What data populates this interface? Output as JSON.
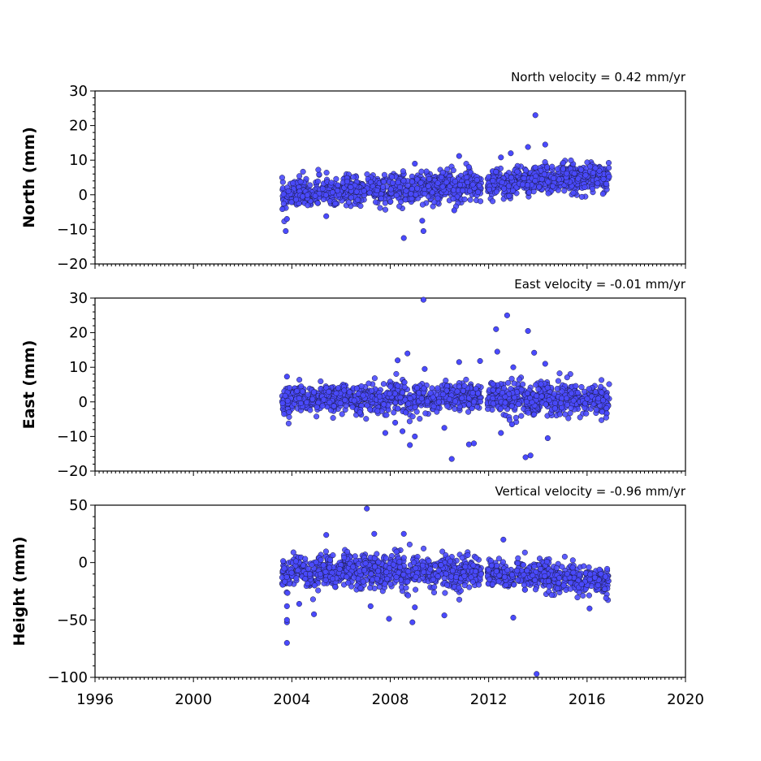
{
  "chart_data": {
    "type": "scatter",
    "marker_color": "#4a4aff",
    "marker_edge_color": "#1a1a40",
    "x_axis": {
      "range": [
        1996,
        2020
      ],
      "ticks": [
        1996,
        2000,
        2004,
        2008,
        2012,
        2016,
        2020
      ],
      "tick_labels": [
        "1996",
        "2000",
        "2004",
        "2008",
        "2012",
        "2016",
        "2020"
      ]
    },
    "panels": [
      {
        "name": "north",
        "ylabel": "North (mm)",
        "annotation": "North velocity = 0.42 mm/yr",
        "ylim": [
          -20,
          30
        ],
        "yticks": [
          -20,
          -10,
          0,
          10,
          20,
          30
        ],
        "ytick_labels": [
          "−20",
          "−10",
          "0",
          "10",
          "20",
          "30"
        ],
        "series": {
          "segments": [
            {
              "start": 2003.6,
              "end": 2011.7,
              "y_at_start": 0.0,
              "y_at_end": 3.0,
              "scatter": 2.0
            },
            {
              "start": 2011.95,
              "end": 2016.9,
              "y_at_start": 3.0,
              "y_at_end": 5.5,
              "scatter": 2.0
            }
          ],
          "outliers": [
            [
              2003.75,
              -10.5
            ],
            [
              2003.8,
              -7.0
            ],
            [
              2008.55,
              -12.5
            ],
            [
              2009.35,
              -10.5
            ],
            [
              2009.3,
              -7.5
            ],
            [
              2013.9,
              23.0
            ],
            [
              2014.3,
              14.5
            ],
            [
              2013.6,
              13.8
            ],
            [
              2010.8,
              11.2
            ],
            [
              2012.9,
              12.0
            ],
            [
              2012.5,
              10.8
            ],
            [
              2005.4,
              -6.2
            ],
            [
              2011.2,
              8.0
            ],
            [
              2009.0,
              9.0
            ],
            [
              2010.6,
              -4.5
            ]
          ]
        }
      },
      {
        "name": "east",
        "ylabel": "East (mm)",
        "annotation": "East velocity = -0.01 mm/yr",
        "ylim": [
          -20,
          30
        ],
        "yticks": [
          -20,
          -10,
          0,
          10,
          20,
          30
        ],
        "ytick_labels": [
          "−20",
          "−10",
          "0",
          "10",
          "20",
          "30"
        ],
        "series": {
          "segments": [
            {
              "start": 2003.6,
              "end": 2011.7,
              "y_at_start": 1.0,
              "y_at_end": 1.0,
              "scatter": 2.0
            },
            {
              "start": 2011.95,
              "end": 2016.9,
              "y_at_start": 1.0,
              "y_at_end": 1.0,
              "scatter": 2.2
            }
          ],
          "outliers": [
            [
              2009.35,
              29.5
            ],
            [
              2012.75,
              25.0
            ],
            [
              2012.3,
              21.0
            ],
            [
              2013.6,
              20.5
            ],
            [
              2012.35,
              14.5
            ],
            [
              2013.85,
              14.2
            ],
            [
              2008.7,
              14.0
            ],
            [
              2008.3,
              12.0
            ],
            [
              2014.3,
              11.0
            ],
            [
              2011.65,
              11.8
            ],
            [
              2010.8,
              11.5
            ],
            [
              2003.8,
              7.3
            ],
            [
              2010.5,
              -16.5
            ],
            [
              2013.5,
              -16.0
            ],
            [
              2013.7,
              -15.5
            ],
            [
              2011.2,
              -12.3
            ],
            [
              2011.4,
              -12.0
            ],
            [
              2008.8,
              -12.5
            ],
            [
              2014.4,
              -10.5
            ],
            [
              2009.0,
              -10.0
            ],
            [
              2007.8,
              -9.0
            ],
            [
              2012.5,
              -9.0
            ],
            [
              2008.5,
              -8.5
            ],
            [
              2009.4,
              9.5
            ],
            [
              2013.0,
              10.0
            ],
            [
              2012.95,
              -6.5
            ],
            [
              2010.2,
              -7.5
            ],
            [
              2008.2,
              -6.0
            ]
          ]
        }
      },
      {
        "name": "height",
        "ylabel": "Height (mm)",
        "annotation": "Vertical velocity = -0.96 mm/yr",
        "ylim": [
          -100,
          50
        ],
        "yticks": [
          -100,
          -50,
          0,
          50
        ],
        "ytick_labels": [
          "−100",
          "−50",
          "0",
          "50"
        ],
        "series": {
          "segments": [
            {
              "start": 2003.6,
              "end": 2011.7,
              "y_at_start": -8.0,
              "y_at_end": -8.0,
              "scatter": 7.0
            },
            {
              "start": 2011.95,
              "end": 2016.9,
              "y_at_start": -9.0,
              "y_at_end": -17.0,
              "scatter": 6.0
            }
          ],
          "outliers": [
            [
              2003.8,
              -70.0
            ],
            [
              2003.8,
              -52.0
            ],
            [
              2003.8,
              -50.0
            ],
            [
              2003.8,
              -38.0
            ],
            [
              2013.95,
              -97.0
            ],
            [
              2007.05,
              47.0
            ],
            [
              2007.35,
              25.0
            ],
            [
              2008.55,
              25.0
            ],
            [
              2005.4,
              24.0
            ],
            [
              2008.9,
              -52.0
            ],
            [
              2007.95,
              -49.0
            ],
            [
              2013.0,
              -48.0
            ],
            [
              2010.2,
              -46.0
            ],
            [
              2004.9,
              -45.0
            ],
            [
              2007.2,
              -38.0
            ],
            [
              2009.0,
              -39.0
            ],
            [
              2004.3,
              -36.0
            ],
            [
              2012.6,
              20.0
            ],
            [
              2016.1,
              -40.0
            ]
          ]
        }
      }
    ]
  }
}
